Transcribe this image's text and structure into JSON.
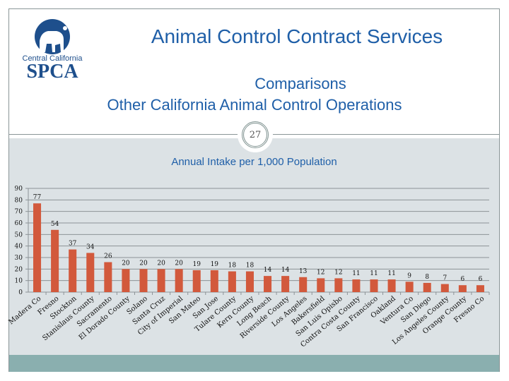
{
  "logo": {
    "line1": "Central California",
    "line2": "SPCA"
  },
  "header": {
    "title": "Animal Control Contract Services",
    "subtitle_line1": "Comparisons",
    "subtitle_line2": "Other California Animal Control Operations"
  },
  "slide_number": "27",
  "colors": {
    "title_blue": "#1f5fa8",
    "bar": "#d2593c",
    "panel": "#dce2e5",
    "footer": "#8aafaf"
  },
  "chart_data": {
    "type": "bar",
    "title": "Annual Intake per 1,000 Population",
    "xlabel": "",
    "ylabel": "",
    "ylim": [
      0,
      90
    ],
    "yticks": [
      0,
      10,
      20,
      30,
      40,
      50,
      60,
      70,
      80,
      90
    ],
    "grid": true,
    "legend": "none",
    "categories": [
      "Madera Co",
      "Fresno",
      "Stockton",
      "Stanislaus County",
      "Sacramento",
      "El Dorado County",
      "Solano",
      "Santa Cruz",
      "City of Imperial",
      "San Mateo",
      "San Jose",
      "Tulare County",
      "Kern County",
      "Long Beach",
      "Riverside County",
      "Los Angeles",
      "Bakersfield",
      "San Luis Opisbo",
      "Contra Costa County",
      "San Francisco",
      "Oakland",
      "Ventura Co",
      "San Diego",
      "Los Angeles County",
      "Orange County",
      "Fresno Co"
    ],
    "values": [
      77,
      54,
      37,
      34,
      26,
      20,
      20,
      20,
      20,
      19,
      19,
      18,
      18,
      14,
      14,
      13,
      12,
      12,
      11,
      11,
      11,
      9,
      8,
      7,
      6,
      6
    ]
  }
}
